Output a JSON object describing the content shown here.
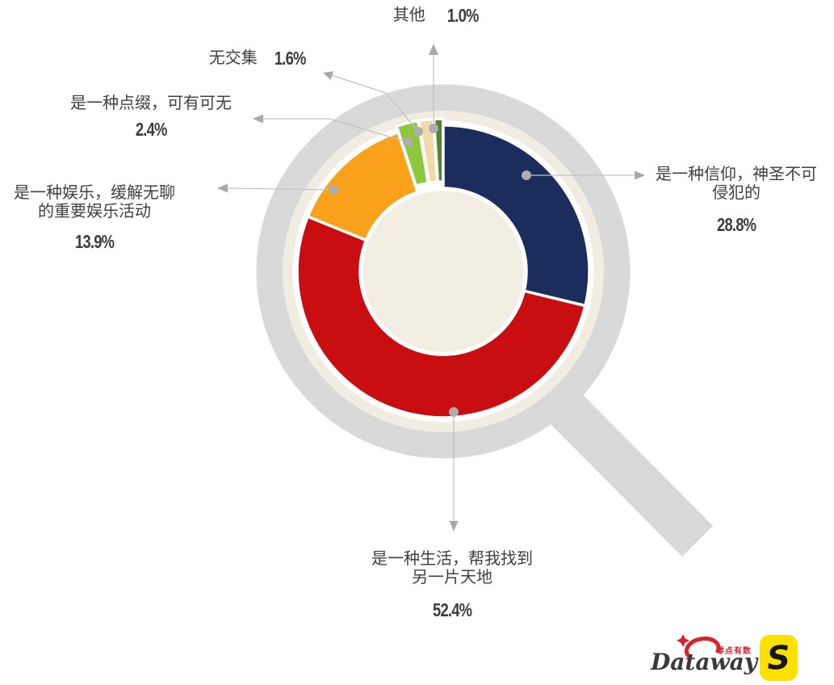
{
  "chart_data": {
    "type": "pie",
    "subtype": "donut",
    "title": "",
    "unit": "%",
    "clockwise": true,
    "start_angle_deg": 0,
    "legend_position": "callout-labels",
    "segments": [
      {
        "label": "是一种信仰，神圣不可侵犯的",
        "value": 28.8,
        "color": "#1b2d5d",
        "exploded": false
      },
      {
        "label": "是一种生活，帮我找到另一片天地",
        "value": 52.4,
        "color": "#c90e11",
        "exploded": false
      },
      {
        "label": "是一种娱乐，缓解无聊的重要娱乐活动",
        "value": 13.9,
        "color": "#faa21b",
        "exploded": false
      },
      {
        "label": "是一种点缀，可有可无",
        "value": 2.4,
        "color": "#8dc63f",
        "exploded": true
      },
      {
        "label": "无交集",
        "value": 1.6,
        "color": "#efdaa8",
        "exploded": true
      },
      {
        "label": "其他",
        "value": 1.0,
        "color": "#55832f",
        "exploded": true
      }
    ]
  },
  "labels": {
    "other": {
      "text": "其他",
      "pct": "1.0%"
    },
    "no_overlap": {
      "text": "无交集",
      "pct": "1.6%"
    },
    "decoration": {
      "line1": "是一种点缀，可有可无",
      "pct": "2.4%"
    },
    "entertainment": {
      "line1": "是一种娱乐，缓解无聊",
      "line2": "的重要娱乐活动",
      "pct": "13.9%"
    },
    "faith": {
      "line1": "是一种信仰，神圣不可",
      "line2": "侵犯的",
      "pct": "28.8%"
    },
    "life": {
      "line1": "是一种生活，帮我找到",
      "line2": "另一片天地",
      "pct": "52.4%"
    }
  },
  "logo": {
    "brand": "Dataway",
    "tagline": "零点有数",
    "monogram": "S"
  },
  "colors": {
    "magnifier_gray": "#d9d9d9",
    "cream": "#f2ede2",
    "cream_hole": "#f3eee3",
    "white_ring": "#ffffff",
    "leader_line": "#c3c3c3",
    "marker": "#adadad",
    "arrow": "#a9a9a9",
    "label_text": "#404040",
    "logo_red": "#d7242c",
    "logo_yellow": "#ffe100",
    "logo_text": "#3a3a3a"
  }
}
